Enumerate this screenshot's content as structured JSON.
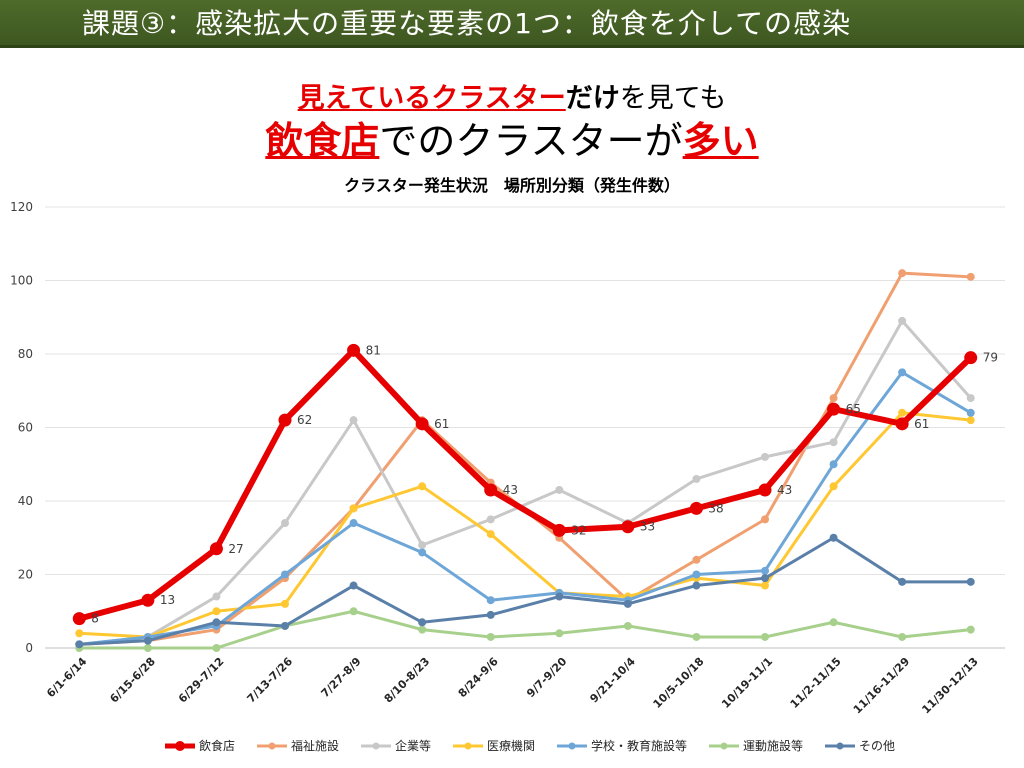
{
  "header": {
    "banner": "課題③：感染拡大の重要な要素の1つ：飲食を介しての感染",
    "line1_red": "見えているクラスター",
    "line1_bold": "だけ",
    "line1_rest": "を見ても",
    "line2_red1": "飲食店",
    "line2_mid": "でのクラスターが",
    "line2_red2": "多い"
  },
  "chart_data": {
    "type": "line",
    "title": "クラスター発生状況　場所別分類（発生件数）",
    "categories": [
      "6/1-6/14",
      "6/15-6/28",
      "6/29-7/12",
      "7/13-7/26",
      "7/27-8/9",
      "8/10-8/23",
      "8/24-9/6",
      "9/7-9/20",
      "9/21-10/4",
      "10/5-10/18",
      "10/19-11/1",
      "11/2-11/15",
      "11/16-11/29",
      "11/30-12/13"
    ],
    "ylim": [
      0,
      120
    ],
    "yticks": [
      0,
      20,
      40,
      60,
      80,
      100,
      120
    ],
    "grid": true,
    "legend_position": "bottom",
    "series": [
      {
        "name": "飲食店",
        "color": "#e60000",
        "values": [
          8,
          13,
          27,
          62,
          81,
          61,
          43,
          32,
          33,
          38,
          43,
          65,
          61,
          79
        ],
        "labels": true,
        "bold": true
      },
      {
        "name": "福祉施設",
        "color": "#f0a070",
        "values": [
          1,
          2,
          5,
          19,
          38,
          62,
          45,
          30,
          13,
          24,
          35,
          68,
          102,
          101
        ]
      },
      {
        "name": "企業等",
        "color": "#c8c8c8",
        "values": [
          1,
          3,
          14,
          34,
          62,
          28,
          35,
          43,
          34,
          46,
          52,
          56,
          89,
          68
        ]
      },
      {
        "name": "医療機関",
        "color": "#ffc832",
        "values": [
          4,
          3,
          10,
          12,
          38,
          44,
          31,
          15,
          14,
          19,
          17,
          44,
          64,
          62
        ]
      },
      {
        "name": "学校・教育施設等",
        "color": "#6ea6d8",
        "values": [
          1,
          3,
          6,
          20,
          34,
          26,
          13,
          15,
          13,
          20,
          21,
          50,
          75,
          64
        ]
      },
      {
        "name": "運動施設等",
        "color": "#a8d08d",
        "values": [
          0,
          0,
          0,
          6,
          10,
          5,
          3,
          4,
          6,
          3,
          3,
          7,
          3,
          5
        ]
      },
      {
        "name": "その他",
        "color": "#5a7fa8",
        "values": [
          1,
          2,
          7,
          6,
          17,
          7,
          9,
          14,
          12,
          17,
          19,
          30,
          18,
          18
        ]
      }
    ]
  }
}
